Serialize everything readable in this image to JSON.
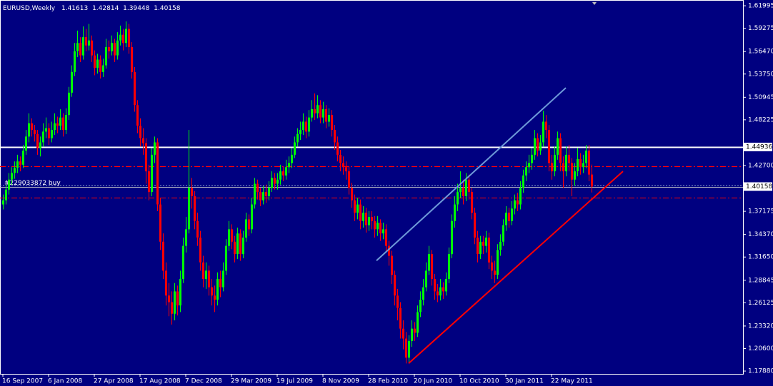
{
  "chart_data": {
    "type": "candlestick",
    "symbol": "EURUSD,Weekly",
    "background": "#000080",
    "bull_color": "#00ff00",
    "bear_color": "#ff0000",
    "ylim": [
      1.1754,
      1.6269
    ],
    "yticks": [
      1.61995,
      1.59275,
      {
        "value": 1.5647,
        "label": "1.56470"
      },
      {
        "value": 1.5375,
        "label": "1.53750"
      },
      1.50945,
      1.48225,
      {
        "value": 1.427,
        "label": "1.42700"
      },
      1.37175,
      {
        "value": 1.3437,
        "label": "1.34370"
      },
      {
        "value": 1.3165,
        "label": "1.31650"
      },
      1.28845,
      1.26125,
      {
        "value": 1.2332,
        "label": "1.23320"
      },
      {
        "value": 1.206,
        "label": "1.20600"
      },
      {
        "value": 1.1788,
        "label": "1.17880"
      }
    ],
    "xticks": [
      {
        "value": 0,
        "label": "16 Sep 2007"
      },
      {
        "value": 16,
        "label": "6 Jan 2008"
      },
      {
        "value": 32,
        "label": "27 Apr 2008"
      },
      {
        "value": 48,
        "label": "17 Aug 2008"
      },
      {
        "value": 64,
        "label": "7 Dec 2008"
      },
      {
        "value": 80,
        "label": "29 Mar 2009"
      },
      {
        "value": 96,
        "label": "19 Jul 2009"
      },
      {
        "value": 112,
        "label": "8 Nov 2009"
      },
      {
        "value": 128,
        "label": "28 Feb 2010"
      },
      {
        "value": 144,
        "label": "20 Jun 2010"
      },
      {
        "value": 160,
        "label": "10 Oct 2010"
      },
      {
        "value": 176,
        "label": "30 Jan 2011"
      },
      {
        "value": 192,
        "label": "22 May 2011"
      }
    ],
    "levels": [
      {
        "value": 1.44936,
        "color": "#ffffff",
        "style": "solid",
        "show_price": true
      },
      {
        "value": 1.426,
        "color": "#ff0000",
        "style": "dashdot",
        "show_price": false
      },
      {
        "value": 1.388,
        "color": "#ff0000",
        "style": "dashdot",
        "show_price": false
      }
    ],
    "order": {
      "label": "#229033872 buy",
      "value": 1.4025
    },
    "trendlines": [
      {
        "x": [
          130.75,
          197
        ],
        "y": [
          1.3122,
          1.5208
        ],
        "color": "#6e9ad8"
      },
      {
        "x": [
          142,
          217
        ],
        "y": [
          1.1881,
          1.42
        ],
        "color": "#ff0000"
      }
    ],
    "ohlc": [
      [
        1.38,
        1.392,
        1.374,
        1.385
      ],
      [
        1.385,
        1.404,
        1.38,
        1.398
      ],
      [
        1.398,
        1.418,
        1.392,
        1.41
      ],
      [
        1.41,
        1.425,
        1.404,
        1.418
      ],
      [
        1.418,
        1.432,
        1.411,
        1.424
      ],
      [
        1.424,
        1.44,
        1.418,
        1.432
      ],
      [
        1.432,
        1.438,
        1.42,
        1.428
      ],
      [
        1.428,
        1.452,
        1.424,
        1.445
      ],
      [
        1.445,
        1.47,
        1.44,
        1.462
      ],
      [
        1.462,
        1.49,
        1.455,
        1.478
      ],
      [
        1.478,
        1.484,
        1.462,
        1.47
      ],
      [
        1.47,
        1.476,
        1.456,
        1.465
      ],
      [
        1.465,
        1.47,
        1.44,
        1.448
      ],
      [
        1.448,
        1.462,
        1.438,
        1.455
      ],
      [
        1.455,
        1.478,
        1.45,
        1.468
      ],
      [
        1.468,
        1.485,
        1.46,
        1.472
      ],
      [
        1.472,
        1.478,
        1.452,
        1.46
      ],
      [
        1.46,
        1.48,
        1.455,
        1.47
      ],
      [
        1.47,
        1.49,
        1.464,
        1.478
      ],
      [
        1.478,
        1.486,
        1.466,
        1.475
      ],
      [
        1.475,
        1.495,
        1.47,
        1.485
      ],
      [
        1.485,
        1.49,
        1.462,
        1.47
      ],
      [
        1.47,
        1.496,
        1.465,
        1.488
      ],
      [
        1.488,
        1.522,
        1.482,
        1.515
      ],
      [
        1.515,
        1.548,
        1.51,
        1.54
      ],
      [
        1.54,
        1.575,
        1.535,
        1.565
      ],
      [
        1.565,
        1.59,
        1.558,
        1.575
      ],
      [
        1.575,
        1.582,
        1.552,
        1.56
      ],
      [
        1.56,
        1.595,
        1.555,
        1.582
      ],
      [
        1.582,
        1.592,
        1.565,
        1.572
      ],
      [
        1.572,
        1.598,
        1.566,
        1.578
      ],
      [
        1.578,
        1.584,
        1.552,
        1.56
      ],
      [
        1.56,
        1.566,
        1.536,
        1.545
      ],
      [
        1.545,
        1.562,
        1.538,
        1.555
      ],
      [
        1.555,
        1.56,
        1.532,
        1.54
      ],
      [
        1.54,
        1.556,
        1.534,
        1.548
      ],
      [
        1.548,
        1.58,
        1.544,
        1.57
      ],
      [
        1.57,
        1.578,
        1.556,
        1.565
      ],
      [
        1.565,
        1.584,
        1.56,
        1.575
      ],
      [
        1.575,
        1.58,
        1.552,
        1.56
      ],
      [
        1.56,
        1.588,
        1.555,
        1.578
      ],
      [
        1.578,
        1.596,
        1.572,
        1.585
      ],
      [
        1.585,
        1.592,
        1.566,
        1.575
      ],
      [
        1.575,
        1.601,
        1.57,
        1.592
      ],
      [
        1.592,
        1.598,
        1.562,
        1.57
      ],
      [
        1.57,
        1.576,
        1.532,
        1.54
      ],
      [
        1.54,
        1.546,
        1.492,
        1.5
      ],
      [
        1.5,
        1.506,
        1.466,
        1.475
      ],
      [
        1.475,
        1.484,
        1.45,
        1.46
      ],
      [
        1.46,
        1.472,
        1.44,
        1.454
      ],
      [
        1.454,
        1.46,
        1.405,
        1.42
      ],
      [
        1.42,
        1.428,
        1.385,
        1.395
      ],
      [
        1.395,
        1.448,
        1.39,
        1.44
      ],
      [
        1.44,
        1.462,
        1.43,
        1.455
      ],
      [
        1.455,
        1.46,
        1.372,
        1.38
      ],
      [
        1.38,
        1.388,
        1.325,
        1.335
      ],
      [
        1.335,
        1.345,
        1.29,
        1.3
      ],
      [
        1.3,
        1.31,
        1.258,
        1.27
      ],
      [
        1.27,
        1.285,
        1.245,
        1.262
      ],
      [
        1.262,
        1.275,
        1.235,
        1.248
      ],
      [
        1.248,
        1.285,
        1.24,
        1.275
      ],
      [
        1.275,
        1.282,
        1.246,
        1.258
      ],
      [
        1.258,
        1.3,
        1.25,
        1.29
      ],
      [
        1.29,
        1.34,
        1.285,
        1.33
      ],
      [
        1.33,
        1.365,
        1.322,
        1.35
      ],
      [
        1.35,
        1.47,
        1.345,
        1.4
      ],
      [
        1.4,
        1.412,
        1.375,
        1.39
      ],
      [
        1.39,
        1.396,
        1.35,
        1.36
      ],
      [
        1.36,
        1.37,
        1.33,
        1.34
      ],
      [
        1.34,
        1.348,
        1.3,
        1.31
      ],
      [
        1.31,
        1.318,
        1.28,
        1.29
      ],
      [
        1.29,
        1.31,
        1.278,
        1.3
      ],
      [
        1.3,
        1.306,
        1.27,
        1.28
      ],
      [
        1.28,
        1.29,
        1.258,
        1.27
      ],
      [
        1.27,
        1.282,
        1.25,
        1.265
      ],
      [
        1.265,
        1.298,
        1.258,
        1.29
      ],
      [
        1.29,
        1.3,
        1.268,
        1.28
      ],
      [
        1.28,
        1.31,
        1.275,
        1.3
      ],
      [
        1.3,
        1.338,
        1.295,
        1.33
      ],
      [
        1.33,
        1.36,
        1.324,
        1.35
      ],
      [
        1.35,
        1.356,
        1.326,
        1.335
      ],
      [
        1.335,
        1.342,
        1.31,
        1.32
      ],
      [
        1.32,
        1.352,
        1.314,
        1.345
      ],
      [
        1.345,
        1.35,
        1.312,
        1.32
      ],
      [
        1.32,
        1.348,
        1.315,
        1.34
      ],
      [
        1.34,
        1.37,
        1.335,
        1.362
      ],
      [
        1.362,
        1.368,
        1.342,
        1.35
      ],
      [
        1.35,
        1.388,
        1.345,
        1.38
      ],
      [
        1.38,
        1.412,
        1.375,
        1.405
      ],
      [
        1.405,
        1.41,
        1.386,
        1.395
      ],
      [
        1.395,
        1.4,
        1.378,
        1.385
      ],
      [
        1.385,
        1.402,
        1.38,
        1.395
      ],
      [
        1.395,
        1.404,
        1.382,
        1.39
      ],
      [
        1.39,
        1.408,
        1.385,
        1.4
      ],
      [
        1.4,
        1.42,
        1.395,
        1.412
      ],
      [
        1.412,
        1.418,
        1.398,
        1.405
      ],
      [
        1.405,
        1.418,
        1.398,
        1.41
      ],
      [
        1.41,
        1.428,
        1.404,
        1.42
      ],
      [
        1.42,
        1.426,
        1.408,
        1.415
      ],
      [
        1.415,
        1.434,
        1.41,
        1.425
      ],
      [
        1.425,
        1.438,
        1.418,
        1.43
      ],
      [
        1.43,
        1.448,
        1.424,
        1.44
      ],
      [
        1.44,
        1.462,
        1.436,
        1.455
      ],
      [
        1.455,
        1.472,
        1.45,
        1.465
      ],
      [
        1.465,
        1.48,
        1.458,
        1.47
      ],
      [
        1.47,
        1.49,
        1.464,
        1.48
      ],
      [
        1.48,
        1.486,
        1.46,
        1.468
      ],
      [
        1.468,
        1.494,
        1.462,
        1.485
      ],
      [
        1.485,
        1.506,
        1.48,
        1.495
      ],
      [
        1.495,
        1.514,
        1.482,
        1.49
      ],
      [
        1.49,
        1.512,
        1.484,
        1.5
      ],
      [
        1.5,
        1.506,
        1.478,
        1.485
      ],
      [
        1.485,
        1.504,
        1.478,
        1.495
      ],
      [
        1.495,
        1.5,
        1.472,
        1.48
      ],
      [
        1.48,
        1.496,
        1.474,
        1.488
      ],
      [
        1.488,
        1.494,
        1.462,
        1.47
      ],
      [
        1.47,
        1.476,
        1.446,
        1.455
      ],
      [
        1.455,
        1.462,
        1.432,
        1.44
      ],
      [
        1.44,
        1.446,
        1.42,
        1.43
      ],
      [
        1.43,
        1.438,
        1.416,
        1.425
      ],
      [
        1.425,
        1.432,
        1.41,
        1.42
      ],
      [
        1.42,
        1.426,
        1.392,
        1.4
      ],
      [
        1.4,
        1.406,
        1.376,
        1.385
      ],
      [
        1.385,
        1.392,
        1.36,
        1.37
      ],
      [
        1.37,
        1.388,
        1.362,
        1.38
      ],
      [
        1.38,
        1.386,
        1.35,
        1.36
      ],
      [
        1.36,
        1.378,
        1.352,
        1.37
      ],
      [
        1.37,
        1.376,
        1.346,
        1.355
      ],
      [
        1.355,
        1.372,
        1.348,
        1.365
      ],
      [
        1.365,
        1.372,
        1.35,
        1.36
      ],
      [
        1.36,
        1.366,
        1.34,
        1.35
      ],
      [
        1.35,
        1.366,
        1.342,
        1.358
      ],
      [
        1.358,
        1.362,
        1.336,
        1.345
      ],
      [
        1.345,
        1.358,
        1.338,
        1.35
      ],
      [
        1.35,
        1.356,
        1.322,
        1.33
      ],
      [
        1.33,
        1.336,
        1.306,
        1.318
      ],
      [
        1.318,
        1.324,
        1.284,
        1.295
      ],
      [
        1.295,
        1.3,
        1.258,
        1.27
      ],
      [
        1.27,
        1.278,
        1.24,
        1.255
      ],
      [
        1.255,
        1.262,
        1.218,
        1.23
      ],
      [
        1.23,
        1.24,
        1.205,
        1.218
      ],
      [
        1.218,
        1.226,
        1.188,
        1.195
      ],
      [
        1.195,
        1.222,
        1.19,
        1.215
      ],
      [
        1.215,
        1.24,
        1.208,
        1.23
      ],
      [
        1.23,
        1.238,
        1.215,
        1.225
      ],
      [
        1.225,
        1.258,
        1.22,
        1.25
      ],
      [
        1.25,
        1.275,
        1.244,
        1.265
      ],
      [
        1.265,
        1.29,
        1.258,
        1.28
      ],
      [
        1.28,
        1.31,
        1.275,
        1.3
      ],
      [
        1.3,
        1.33,
        1.295,
        1.32
      ],
      [
        1.32,
        1.325,
        1.282,
        1.29
      ],
      [
        1.29,
        1.296,
        1.265,
        1.275
      ],
      [
        1.275,
        1.284,
        1.262,
        1.27
      ],
      [
        1.27,
        1.29,
        1.264,
        1.28
      ],
      [
        1.28,
        1.286,
        1.266,
        1.275
      ],
      [
        1.275,
        1.298,
        1.27,
        1.29
      ],
      [
        1.29,
        1.328,
        1.285,
        1.32
      ],
      [
        1.32,
        1.368,
        1.315,
        1.36
      ],
      [
        1.36,
        1.39,
        1.352,
        1.38
      ],
      [
        1.38,
        1.405,
        1.372,
        1.395
      ],
      [
        1.395,
        1.42,
        1.388,
        1.4
      ],
      [
        1.4,
        1.41,
        1.38,
        1.39
      ],
      [
        1.39,
        1.418,
        1.384,
        1.41
      ],
      [
        1.41,
        1.416,
        1.386,
        1.395
      ],
      [
        1.395,
        1.4,
        1.362,
        1.37
      ],
      [
        1.37,
        1.376,
        1.332,
        1.34
      ],
      [
        1.34,
        1.348,
        1.31,
        1.32
      ],
      [
        1.32,
        1.342,
        1.314,
        1.335
      ],
      [
        1.335,
        1.342,
        1.32,
        1.33
      ],
      [
        1.33,
        1.348,
        1.322,
        1.34
      ],
      [
        1.34,
        1.346,
        1.302,
        1.31
      ],
      [
        1.31,
        1.318,
        1.29,
        1.3
      ],
      [
        1.3,
        1.312,
        1.285,
        1.295
      ],
      [
        1.295,
        1.332,
        1.29,
        1.325
      ],
      [
        1.325,
        1.344,
        1.318,
        1.335
      ],
      [
        1.335,
        1.362,
        1.33,
        1.355
      ],
      [
        1.355,
        1.378,
        1.348,
        1.37
      ],
      [
        1.37,
        1.376,
        1.352,
        1.36
      ],
      [
        1.36,
        1.384,
        1.355,
        1.375
      ],
      [
        1.375,
        1.392,
        1.368,
        1.385
      ],
      [
        1.385,
        1.394,
        1.372,
        1.38
      ],
      [
        1.38,
        1.408,
        1.374,
        1.4
      ],
      [
        1.4,
        1.422,
        1.394,
        1.415
      ],
      [
        1.415,
        1.432,
        1.408,
        1.425
      ],
      [
        1.425,
        1.44,
        1.418,
        1.43
      ],
      [
        1.43,
        1.448,
        1.422,
        1.44
      ],
      [
        1.44,
        1.47,
        1.434,
        1.46
      ],
      [
        1.46,
        1.466,
        1.438,
        1.445
      ],
      [
        1.445,
        1.464,
        1.44,
        1.455
      ],
      [
        1.455,
        1.493,
        1.45,
        1.48
      ],
      [
        1.48,
        1.488,
        1.46,
        1.47
      ],
      [
        1.47,
        1.476,
        1.42,
        1.43
      ],
      [
        1.43,
        1.44,
        1.41,
        1.42
      ],
      [
        1.42,
        1.45,
        1.414,
        1.44
      ],
      [
        1.44,
        1.468,
        1.434,
        1.46
      ],
      [
        1.46,
        1.466,
        1.42,
        1.43
      ],
      [
        1.43,
        1.438,
        1.4,
        1.42
      ],
      [
        1.42,
        1.45,
        1.414,
        1.44
      ],
      [
        1.44,
        1.452,
        1.42,
        1.43
      ],
      [
        1.43,
        1.436,
        1.39,
        1.41
      ],
      [
        1.41,
        1.43,
        1.402,
        1.42
      ],
      [
        1.42,
        1.448,
        1.414,
        1.435
      ],
      [
        1.435,
        1.442,
        1.416,
        1.425
      ],
      [
        1.425,
        1.44,
        1.418,
        1.43
      ],
      [
        1.43,
        1.452,
        1.424,
        1.445
      ],
      [
        1.445,
        1.452,
        1.408,
        1.4161
      ],
      [
        1.41613,
        1.42814,
        1.39448,
        1.40158
      ]
    ]
  }
}
